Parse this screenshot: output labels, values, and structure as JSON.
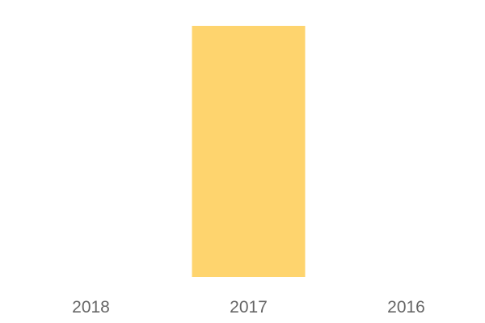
{
  "chart_data": {
    "type": "bar",
    "categories": [
      "2018",
      "2017",
      "2016"
    ],
    "values": [
      0,
      1,
      0
    ],
    "ylim": [
      0,
      1
    ],
    "grid": false,
    "colors": {
      "bar": "#FED46E",
      "tick_label": "#666666"
    }
  }
}
